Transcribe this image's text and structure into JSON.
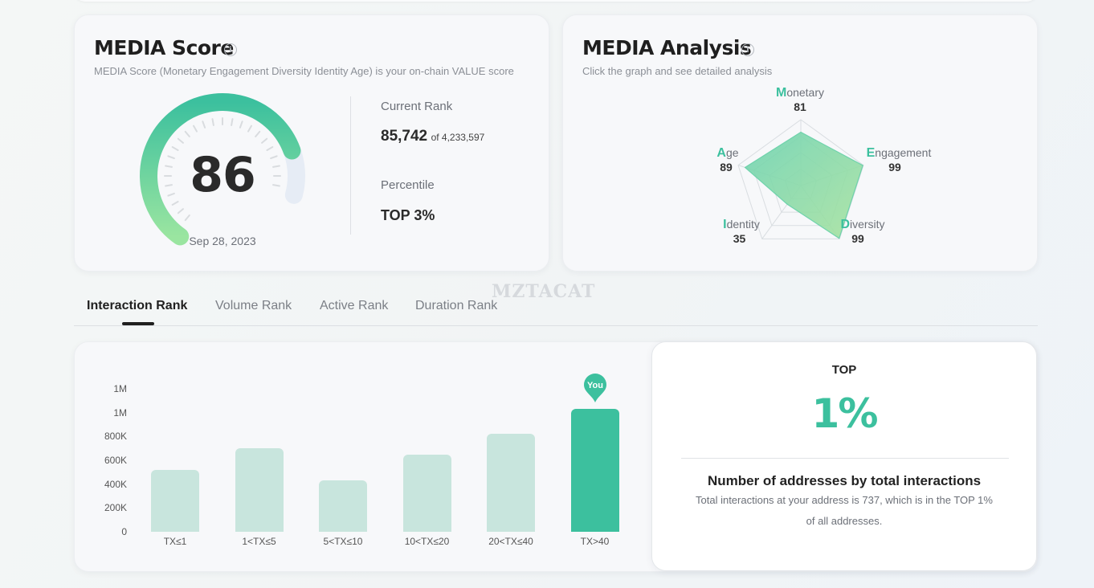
{
  "score_card": {
    "title": "MEDIA Score",
    "subtitle": "MEDIA Score (Monetary Engagement Diversity Identity Age) is your on-chain VALUE score",
    "score": "86",
    "score_value": 86,
    "date": "Sep 28, 2023",
    "current_rank_label": "Current Rank",
    "rank": "85,742",
    "rank_of": "of 4,233,597",
    "percentile_label": "Percentile",
    "percentile": "TOP 3%"
  },
  "analysis_card": {
    "title": "MEDIA Analysis",
    "subtitle": "Click the graph and see detailed analysis",
    "dimensions": [
      {
        "initial": "M",
        "rest": "onetary",
        "value": "81",
        "score": 81
      },
      {
        "initial": "E",
        "rest": "ngagement",
        "value": "99",
        "score": 99
      },
      {
        "initial": "D",
        "rest": "iversity",
        "value": "99",
        "score": 99
      },
      {
        "initial": "I",
        "rest": "dentity",
        "value": "35",
        "score": 35
      },
      {
        "initial": "A",
        "rest": "ge",
        "value": "89",
        "score": 89
      }
    ]
  },
  "watermark": "MZTACAT",
  "tabs": [
    {
      "label": "Interaction Rank",
      "active": true
    },
    {
      "label": "Volume Rank",
      "active": false
    },
    {
      "label": "Active Rank",
      "active": false
    },
    {
      "label": "Duration Rank",
      "active": false
    }
  ],
  "chart_data": {
    "type": "bar",
    "categories": [
      "TX≤1",
      "1<TX≤5",
      "5<TX≤10",
      "10<TX≤20",
      "20<TX≤40",
      "TX>40"
    ],
    "values": [
      520000,
      700000,
      430000,
      650000,
      820000,
      1030000
    ],
    "y_ticks": [
      "0",
      "200K",
      "400K",
      "600K",
      "800K",
      "1M",
      "1M"
    ],
    "ylim": [
      0,
      1200000
    ],
    "highlight_index": 5,
    "highlight_label": "You",
    "colors": {
      "bar": "#c8e5dd",
      "highlight": "#3cc09e"
    }
  },
  "top_card": {
    "label": "TOP",
    "percent": "1%",
    "heading": "Number of addresses by total interactions",
    "desc_line1": "Total interactions at your address is 737, which is in the TOP 1%",
    "desc_line2": "of all addresses."
  },
  "colors": {
    "accent": "#3cc09e",
    "accent_light": "#8fd9a0"
  }
}
